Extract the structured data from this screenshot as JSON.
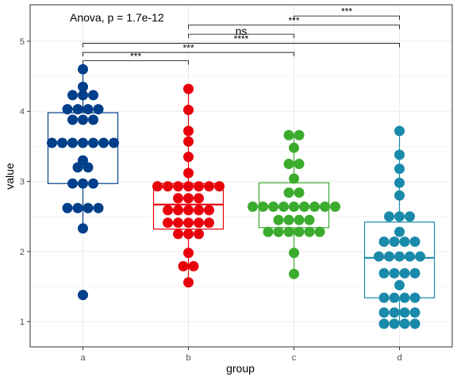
{
  "chart_data": {
    "type": "boxplot-dotplot",
    "xlabel": "group",
    "ylabel": "value",
    "categories": [
      "a",
      "b",
      "c",
      "d"
    ],
    "ylim": [
      0.64,
      5.52
    ],
    "yticks": [
      1,
      2,
      3,
      4,
      5
    ],
    "grid": true,
    "annotation": "Anova, p = 1.7e-12",
    "colors": {
      "a": "#003f8a",
      "b": "#e8000b",
      "c": "#3bab2e",
      "d": "#1a8aaa"
    },
    "boxes": [
      {
        "group": "a",
        "q1": 2.97,
        "median": 3.55,
        "q3": 3.98,
        "whisker_low": 2.33,
        "whisker_high": 4.6
      },
      {
        "group": "b",
        "q1": 2.32,
        "median": 2.67,
        "q3": 2.97,
        "whisker_low": 1.56,
        "whisker_high": 4.32
      },
      {
        "group": "c",
        "q1": 2.34,
        "median": 2.64,
        "q3": 2.98,
        "whisker_low": 1.68,
        "whisker_high": 3.66
      },
      {
        "group": "d",
        "q1": 1.34,
        "median": 1.91,
        "q3": 2.42,
        "whisker_low": 0.96,
        "whisker_high": 3.72
      }
    ],
    "points": {
      "a": [
        4.6,
        4.35,
        4.23,
        4.23,
        4.23,
        4.03,
        4.03,
        4.03,
        4.03,
        3.88,
        3.88,
        3.88,
        3.55,
        3.55,
        3.55,
        3.55,
        3.55,
        3.55,
        3.55,
        3.3,
        3.2,
        3.2,
        2.97,
        2.97,
        2.97,
        2.62,
        2.62,
        2.62,
        2.62,
        2.33,
        1.38
      ],
      "b": [
        4.32,
        4.02,
        3.72,
        3.57,
        3.35,
        3.12,
        2.93,
        2.93,
        2.93,
        2.93,
        2.93,
        2.93,
        2.93,
        2.76,
        2.76,
        2.76,
        2.59,
        2.59,
        2.59,
        2.59,
        2.59,
        2.41,
        2.41,
        2.41,
        2.41,
        2.41,
        2.25,
        2.25,
        2.25,
        1.98,
        1.79,
        1.79,
        1.56
      ],
      "c": [
        3.66,
        3.66,
        3.48,
        3.25,
        3.25,
        3.04,
        2.84,
        2.84,
        2.64,
        2.64,
        2.64,
        2.64,
        2.64,
        2.64,
        2.64,
        2.64,
        2.64,
        2.45,
        2.45,
        2.45,
        2.45,
        2.28,
        2.28,
        2.28,
        2.28,
        2.28,
        2.28,
        1.98,
        1.68
      ],
      "d": [
        3.72,
        3.38,
        3.18,
        2.98,
        2.8,
        2.5,
        2.5,
        2.5,
        2.28,
        2.14,
        2.14,
        2.14,
        2.14,
        1.93,
        1.93,
        1.93,
        1.93,
        1.93,
        1.69,
        1.69,
        1.69,
        1.69,
        1.52,
        1.34,
        1.34,
        1.34,
        1.34,
        1.13,
        1.13,
        1.13,
        1.13,
        0.97,
        0.97,
        0.97,
        0.97
      ]
    },
    "comparisons": [
      {
        "from": "a",
        "to": "b",
        "label": "***",
        "y": 4.72
      },
      {
        "from": "a",
        "to": "c",
        "label": "***",
        "y": 4.84
      },
      {
        "from": "a",
        "to": "d",
        "label": "****",
        "y": 4.97
      },
      {
        "from": "b",
        "to": "c",
        "label": "ns",
        "y": 5.1
      },
      {
        "from": "b",
        "to": "d",
        "label": "***",
        "y": 5.23
      },
      {
        "from": "c",
        "to": "d",
        "label": "***",
        "y": 5.36
      }
    ]
  }
}
